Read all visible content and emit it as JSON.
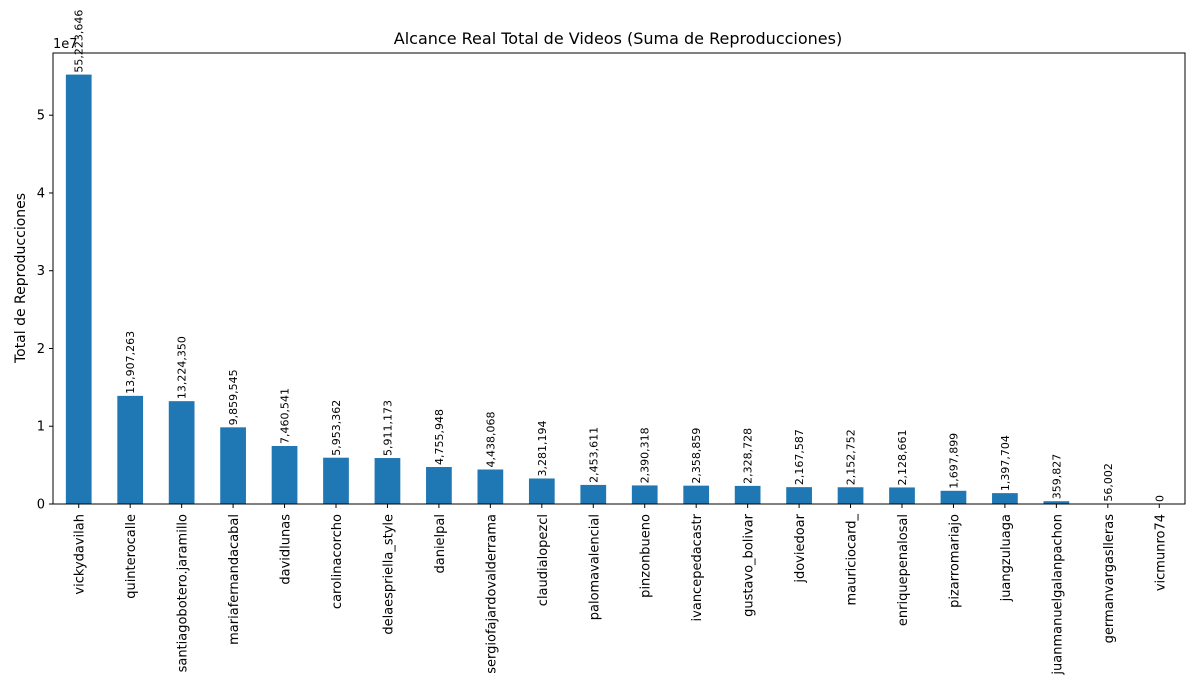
{
  "chart_data": {
    "type": "bar",
    "title": "Alcance Real Total de Videos (Suma de Reproducciones)",
    "xlabel": "",
    "ylabel": "Total de Reproducciones",
    "y_offset_label": "1e7",
    "y_scale": 10000000,
    "ylim": [
      0,
      58000000
    ],
    "y_ticks": [
      0,
      10000000,
      20000000,
      30000000,
      40000000,
      50000000
    ],
    "y_tick_labels": [
      "0",
      "1",
      "2",
      "3",
      "4",
      "5"
    ],
    "grid": false,
    "bar_color": "#1f77b4",
    "categories": [
      "vickydavilah",
      "quinterocalle",
      "santiagobotero.jaramillo",
      "mariafernandacabal",
      "davidlunas",
      "carolinacorcho",
      "delaespriella_style",
      "danielpal",
      "sergiofajardovalderrama",
      "claudialopezcl",
      "palomavalencial",
      "pinzonbueno",
      "ivancepedacastr",
      "gustavo_bolivar",
      "jdoviedoar",
      "mauriciocard_",
      "enriquepenalosal",
      "pizarromariajo",
      "juangzuluaga",
      "juanmanuelgalanpachon",
      "germanvargaslleras",
      "vicmunro74"
    ],
    "values": [
      55223646,
      13907263,
      13224350,
      9859545,
      7460541,
      5953362,
      5911173,
      4755948,
      4438068,
      3281194,
      2453611,
      2390318,
      2358859,
      2328728,
      2167587,
      2152752,
      2128661,
      1697899,
      1397704,
      359827,
      56002,
      0
    ],
    "value_labels": [
      "55,223,646",
      "13,907,263",
      "13,224,350",
      "9,859,545",
      "7,460,541",
      "5,953,362",
      "5,911,173",
      "4,755,948",
      "4,438,068",
      "3,281,194",
      "2,453,611",
      "2,390,318",
      "2,358,859",
      "2,328,728",
      "2,167,587",
      "2,152,752",
      "2,128,661",
      "1,697,899",
      "1,397,704",
      "359,827",
      "56,002",
      "0"
    ]
  }
}
